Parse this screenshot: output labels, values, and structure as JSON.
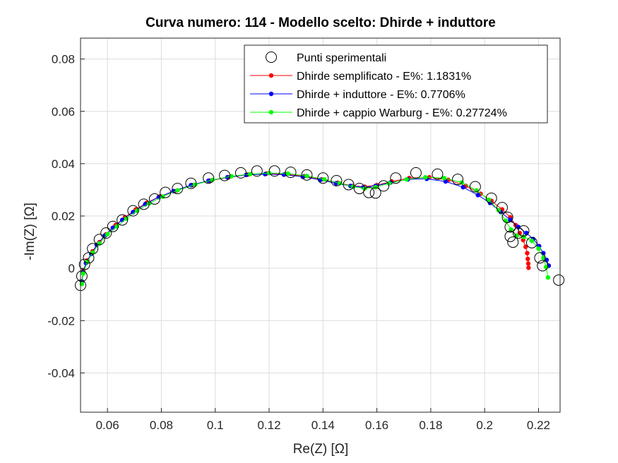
{
  "chart_data": {
    "type": "scatter",
    "title": "Curva numero: 114 - Modello scelto: Dhirde + induttore",
    "xlabel": "Re(Z) [Ω]",
    "ylabel": "-Im(Z) [Ω]",
    "xlim": [
      0.05,
      0.228
    ],
    "ylim": [
      -0.055,
      0.088
    ],
    "xticks": [
      0.06,
      0.08,
      0.1,
      0.12,
      0.14,
      0.16,
      0.18,
      0.2,
      0.22
    ],
    "xtick_labels": [
      "0.06",
      "0.08",
      "0.1",
      "0.12",
      "0.14",
      "0.16",
      "0.18",
      "0.2",
      "0.22"
    ],
    "yticks": [
      -0.04,
      -0.02,
      0,
      0.02,
      0.04,
      0.06,
      0.08
    ],
    "ytick_labels": [
      "-0.04",
      "-0.02",
      "0",
      "0.02",
      "0.04",
      "0.06",
      "0.08"
    ],
    "grid": true,
    "legend_position": "top-right",
    "series": [
      {
        "name": "Punti sperimentali",
        "style": "markers",
        "marker": "open-circle",
        "color": "#000000",
        "points": [
          [
            0.05,
            -0.0065
          ],
          [
            0.0505,
            -0.003
          ],
          [
            0.0515,
            0.0015
          ],
          [
            0.053,
            0.004
          ],
          [
            0.0545,
            0.0075
          ],
          [
            0.057,
            0.011
          ],
          [
            0.0595,
            0.0135
          ],
          [
            0.062,
            0.016
          ],
          [
            0.0655,
            0.0185
          ],
          [
            0.0695,
            0.022
          ],
          [
            0.0735,
            0.0245
          ],
          [
            0.0775,
            0.0265
          ],
          [
            0.0815,
            0.029
          ],
          [
            0.086,
            0.0305
          ],
          [
            0.091,
            0.0325
          ],
          [
            0.0975,
            0.0345
          ],
          [
            0.1035,
            0.0355
          ],
          [
            0.1095,
            0.0365
          ],
          [
            0.1155,
            0.0372
          ],
          [
            0.122,
            0.0372
          ],
          [
            0.128,
            0.0367
          ],
          [
            0.134,
            0.0357
          ],
          [
            0.14,
            0.0345
          ],
          [
            0.145,
            0.0335
          ],
          [
            0.1495,
            0.032
          ],
          [
            0.1535,
            0.0305
          ],
          [
            0.157,
            0.029
          ],
          [
            0.1595,
            0.0288
          ],
          [
            0.1625,
            0.0315
          ],
          [
            0.167,
            0.0345
          ],
          [
            0.1745,
            0.0365
          ],
          [
            0.1825,
            0.036
          ],
          [
            0.19,
            0.034
          ],
          [
            0.1965,
            0.0312
          ],
          [
            0.2025,
            0.0268
          ],
          [
            0.2065,
            0.0232
          ],
          [
            0.2085,
            0.0195
          ],
          [
            0.2095,
            0.0158
          ],
          [
            0.2095,
            0.0122
          ],
          [
            0.2105,
            0.01
          ],
          [
            0.2125,
            0.0135
          ],
          [
            0.2145,
            0.0143
          ],
          [
            0.2175,
            0.0098
          ],
          [
            0.2205,
            0.004
          ],
          [
            0.2215,
            0.001
          ],
          [
            0.2275,
            -0.0045
          ]
        ]
      },
      {
        "name": "Dhirde semplificato - E%: 1.1831%",
        "style": "line-markers",
        "color": "#ff0000",
        "points": [
          [
            0.0505,
            -0.005
          ],
          [
            0.051,
            -0.001
          ],
          [
            0.0525,
            0.003
          ],
          [
            0.0545,
            0.0065
          ],
          [
            0.057,
            0.01
          ],
          [
            0.0595,
            0.013
          ],
          [
            0.063,
            0.0165
          ],
          [
            0.0665,
            0.0195
          ],
          [
            0.0705,
            0.0225
          ],
          [
            0.0745,
            0.025
          ],
          [
            0.0795,
            0.0275
          ],
          [
            0.085,
            0.0295
          ],
          [
            0.0915,
            0.0318
          ],
          [
            0.098,
            0.0335
          ],
          [
            0.105,
            0.0348
          ],
          [
            0.112,
            0.0358
          ],
          [
            0.119,
            0.0362
          ],
          [
            0.126,
            0.036
          ],
          [
            0.133,
            0.0352
          ],
          [
            0.1395,
            0.034
          ],
          [
            0.1455,
            0.0327
          ],
          [
            0.151,
            0.0315
          ],
          [
            0.1555,
            0.0312
          ],
          [
            0.16,
            0.0318
          ],
          [
            0.1655,
            0.0332
          ],
          [
            0.172,
            0.0345
          ],
          [
            0.1795,
            0.0348
          ],
          [
            0.1865,
            0.0338
          ],
          [
            0.193,
            0.0315
          ],
          [
            0.1985,
            0.0285
          ],
          [
            0.2025,
            0.0258
          ],
          [
            0.2065,
            0.0225
          ],
          [
            0.2095,
            0.0195
          ],
          [
            0.2115,
            0.0165
          ],
          [
            0.213,
            0.0135
          ],
          [
            0.2143,
            0.0108
          ],
          [
            0.2152,
            0.0082
          ],
          [
            0.2158,
            0.0058
          ],
          [
            0.216,
            0.0036
          ],
          [
            0.2162,
            0.0018
          ],
          [
            0.2163,
            0.0002
          ]
        ]
      },
      {
        "name": "Dhirde + induttore - E%: 0.7706%",
        "style": "line-markers",
        "color": "#0000ff",
        "points": [
          [
            0.0505,
            -0.005
          ],
          [
            0.051,
            -0.0015
          ],
          [
            0.052,
            0.002
          ],
          [
            0.054,
            0.0055
          ],
          [
            0.056,
            0.009
          ],
          [
            0.059,
            0.0125
          ],
          [
            0.062,
            0.0155
          ],
          [
            0.0655,
            0.0185
          ],
          [
            0.0695,
            0.0215
          ],
          [
            0.074,
            0.0245
          ],
          [
            0.079,
            0.0272
          ],
          [
            0.0845,
            0.0295
          ],
          [
            0.091,
            0.0318
          ],
          [
            0.0975,
            0.0335
          ],
          [
            0.1045,
            0.0348
          ],
          [
            0.1115,
            0.0357
          ],
          [
            0.1185,
            0.036
          ],
          [
            0.1255,
            0.0358
          ],
          [
            0.1325,
            0.035
          ],
          [
            0.139,
            0.0338
          ],
          [
            0.1448,
            0.0325
          ],
          [
            0.1502,
            0.0315
          ],
          [
            0.155,
            0.031
          ],
          [
            0.1595,
            0.0315
          ],
          [
            0.165,
            0.0328
          ],
          [
            0.1715,
            0.034
          ],
          [
            0.1785,
            0.0342
          ],
          [
            0.1855,
            0.0332
          ],
          [
            0.192,
            0.031
          ],
          [
            0.1975,
            0.028
          ],
          [
            0.202,
            0.025
          ],
          [
            0.206,
            0.0215
          ],
          [
            0.2095,
            0.0185
          ],
          [
            0.2125,
            0.0158
          ],
          [
            0.2155,
            0.0135
          ],
          [
            0.218,
            0.0112
          ],
          [
            0.2202,
            0.0085
          ],
          [
            0.2218,
            0.0058
          ],
          [
            0.223,
            0.0032
          ],
          [
            0.2238,
            0.001
          ]
        ]
      },
      {
        "name": "Dhirde + cappio Warburg - E%: 0.27724%",
        "style": "line-markers",
        "color": "#00ff00",
        "points": [
          [
            0.0505,
            -0.006
          ],
          [
            0.051,
            -0.002
          ],
          [
            0.0525,
            0.0025
          ],
          [
            0.0545,
            0.006
          ],
          [
            0.057,
            0.0095
          ],
          [
            0.06,
            0.013
          ],
          [
            0.0635,
            0.016
          ],
          [
            0.067,
            0.019
          ],
          [
            0.071,
            0.022
          ],
          [
            0.0755,
            0.0248
          ],
          [
            0.0805,
            0.0274
          ],
          [
            0.086,
            0.0298
          ],
          [
            0.0925,
            0.032
          ],
          [
            0.099,
            0.0338
          ],
          [
            0.106,
            0.0352
          ],
          [
            0.113,
            0.036
          ],
          [
            0.12,
            0.0364
          ],
          [
            0.127,
            0.0362
          ],
          [
            0.134,
            0.0353
          ],
          [
            0.1405,
            0.034
          ],
          [
            0.1462,
            0.0325
          ],
          [
            0.1512,
            0.0312
          ],
          [
            0.1555,
            0.0305
          ],
          [
            0.1595,
            0.031
          ],
          [
            0.1645,
            0.0325
          ],
          [
            0.171,
            0.034
          ],
          [
            0.178,
            0.0348
          ],
          [
            0.185,
            0.0345
          ],
          [
            0.1915,
            0.0328
          ],
          [
            0.197,
            0.0298
          ],
          [
            0.2015,
            0.0262
          ],
          [
            0.2052,
            0.0222
          ],
          [
            0.2078,
            0.0182
          ],
          [
            0.2098,
            0.0148
          ],
          [
            0.2118,
            0.0125
          ],
          [
            0.2145,
            0.012
          ],
          [
            0.2175,
            0.0105
          ],
          [
            0.22,
            0.0075
          ],
          [
            0.2218,
            0.004
          ],
          [
            0.2228,
            0.0005
          ],
          [
            0.2235,
            -0.0035
          ]
        ]
      }
    ]
  }
}
